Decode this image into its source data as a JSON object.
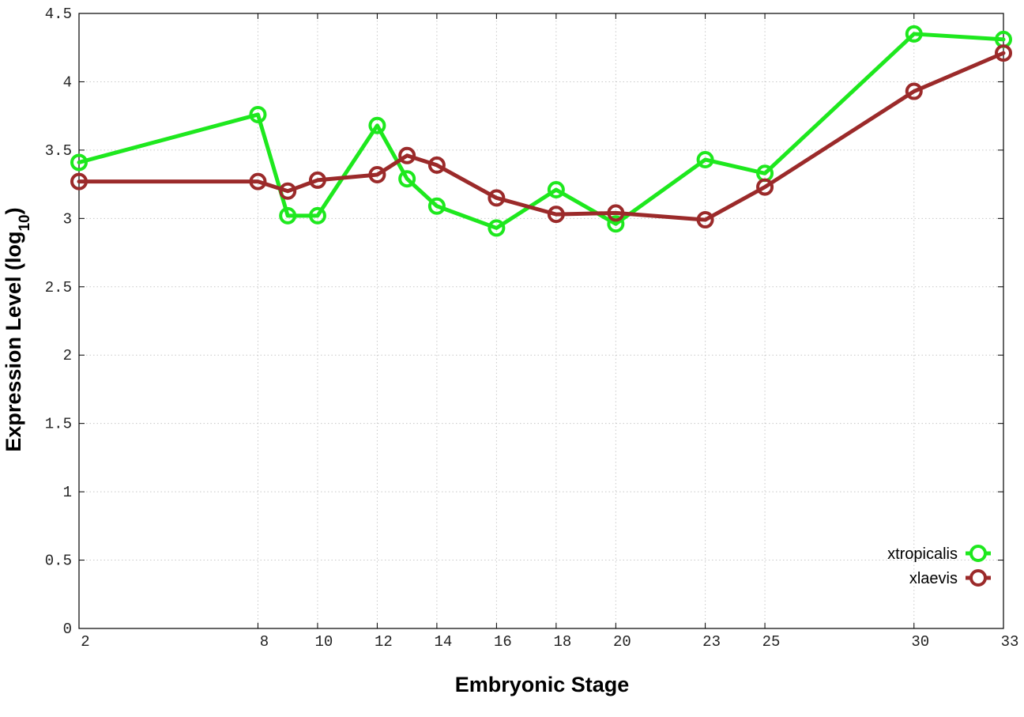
{
  "chart_data": {
    "type": "line",
    "xlabel": "Embryonic Stage",
    "ylabel_main": "Expression Level (log",
    "ylabel_sub": "10",
    "ylabel_close": ")",
    "xlim": [
      2,
      33
    ],
    "ylim": [
      0,
      4.5
    ],
    "grid": true,
    "legend_position": "bottom-right",
    "x_ticks": [
      2,
      8,
      10,
      12,
      14,
      16,
      18,
      20,
      23,
      25,
      30,
      33
    ],
    "y_ticks": [
      {
        "value": 0,
        "label": "0"
      },
      {
        "value": 0.5,
        "label": "0.5"
      },
      {
        "value": 1,
        "label": "1"
      },
      {
        "value": 1.5,
        "label": "1.5"
      },
      {
        "value": 2,
        "label": "2"
      },
      {
        "value": 2.5,
        "label": "2.5"
      },
      {
        "value": 3,
        "label": "3"
      },
      {
        "value": 3.5,
        "label": "3.5"
      },
      {
        "value": 4,
        "label": "4"
      },
      {
        "value": 4.5,
        "label": "4.5"
      }
    ],
    "series": [
      {
        "name": "xtropicalis",
        "color": "#1ee81e",
        "points": [
          [
            2,
            3.41
          ],
          [
            8,
            3.76
          ],
          [
            9,
            3.02
          ],
          [
            10,
            3.02
          ],
          [
            12,
            3.68
          ],
          [
            13,
            3.29
          ],
          [
            14,
            3.09
          ],
          [
            16,
            2.93
          ],
          [
            18,
            3.21
          ],
          [
            20,
            2.96
          ],
          [
            23,
            3.43
          ],
          [
            25,
            3.33
          ],
          [
            30,
            4.35
          ],
          [
            33,
            4.31
          ]
        ]
      },
      {
        "name": "xlaevis",
        "color": "#9b2a2a",
        "points": [
          [
            2,
            3.27
          ],
          [
            8,
            3.27
          ],
          [
            9,
            3.2
          ],
          [
            10,
            3.28
          ],
          [
            12,
            3.32
          ],
          [
            13,
            3.46
          ],
          [
            14,
            3.39
          ],
          [
            16,
            3.15
          ],
          [
            18,
            3.03
          ],
          [
            20,
            3.04
          ],
          [
            23,
            2.99
          ],
          [
            25,
            3.23
          ],
          [
            30,
            3.93
          ],
          [
            33,
            4.21
          ]
        ]
      }
    ]
  }
}
